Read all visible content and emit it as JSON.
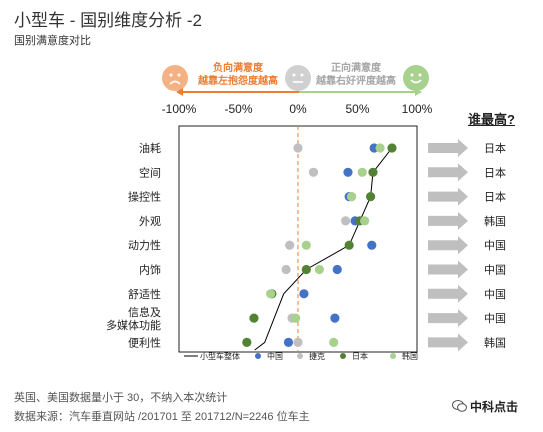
{
  "title": "小型车 - 国别维度分析 -2",
  "subtitle": "国别满意度对比",
  "legend_negative": [
    "负向满意度",
    "越靠左抱怨度越高"
  ],
  "legend_positive": [
    "正向满意度",
    "越靠右好评度越高"
  ],
  "who_header": "谁最高?",
  "notes": [
    "英国、美国数据量小于 30，不纳入本次统计",
    "数据来源：汽车垂直网站 /201701 至 201712/N=2246 位车主"
  ],
  "logo": "中科点击",
  "colors": {
    "china": "#4472c4",
    "czech": "#bfbfbf",
    "japan": "#548235",
    "korea": "#a9d18e",
    "overall": "#000000",
    "zero_line": "#ed7d31",
    "arrow": "#bfbfbf",
    "negative_face": "#f4b183",
    "neutral_face": "#d0d0d0",
    "positive_face": "#a9d18e"
  },
  "chart_data": {
    "type": "scatter",
    "xlim": [
      -100,
      100
    ],
    "x_tick_labels": [
      "-100%",
      "-50%",
      "0%",
      "50%",
      "100%"
    ],
    "x_ticks": [
      -100,
      -50,
      0,
      50,
      100
    ],
    "categories": [
      "油耗",
      "空间",
      "操控性",
      "外观",
      "动力性",
      "内饰",
      "舒适性",
      "信息及多媒体功能",
      "便利性"
    ],
    "category_lines": [
      [
        "油耗"
      ],
      [
        "空间"
      ],
      [
        "操控性"
      ],
      [
        "外观"
      ],
      [
        "动力性"
      ],
      [
        "内饰"
      ],
      [
        "舒适性"
      ],
      [
        "信息及",
        "多媒体功能"
      ],
      [
        "便利性"
      ]
    ],
    "series": [
      {
        "name": "中国",
        "color_key": "china",
        "values": [
          64,
          42,
          43,
          48,
          62,
          33,
          5,
          31,
          -8
        ]
      },
      {
        "name": "捷克",
        "color_key": "czech",
        "values": [
          0,
          13,
          45,
          40,
          -7,
          -10,
          -22,
          -5,
          0
        ]
      },
      {
        "name": "日本",
        "color_key": "japan",
        "values": [
          79,
          63,
          61,
          52,
          43,
          7,
          -22,
          -37,
          -43
        ]
      },
      {
        "name": "韩国",
        "color_key": "korea",
        "values": [
          69,
          54,
          45,
          56,
          7,
          18,
          -23,
          -2,
          30
        ]
      }
    ],
    "overall": {
      "name": "小型车整体",
      "values": [
        79,
        63,
        61,
        52,
        43,
        7,
        -12,
        -20,
        -28
      ]
    },
    "winners": [
      "日本",
      "日本",
      "日本",
      "韩国",
      "中国",
      "中国",
      "中国",
      "中国",
      "韩国"
    ],
    "legend": [
      "小型车整体",
      "中国",
      "捷克",
      "日本",
      "韩国"
    ]
  }
}
